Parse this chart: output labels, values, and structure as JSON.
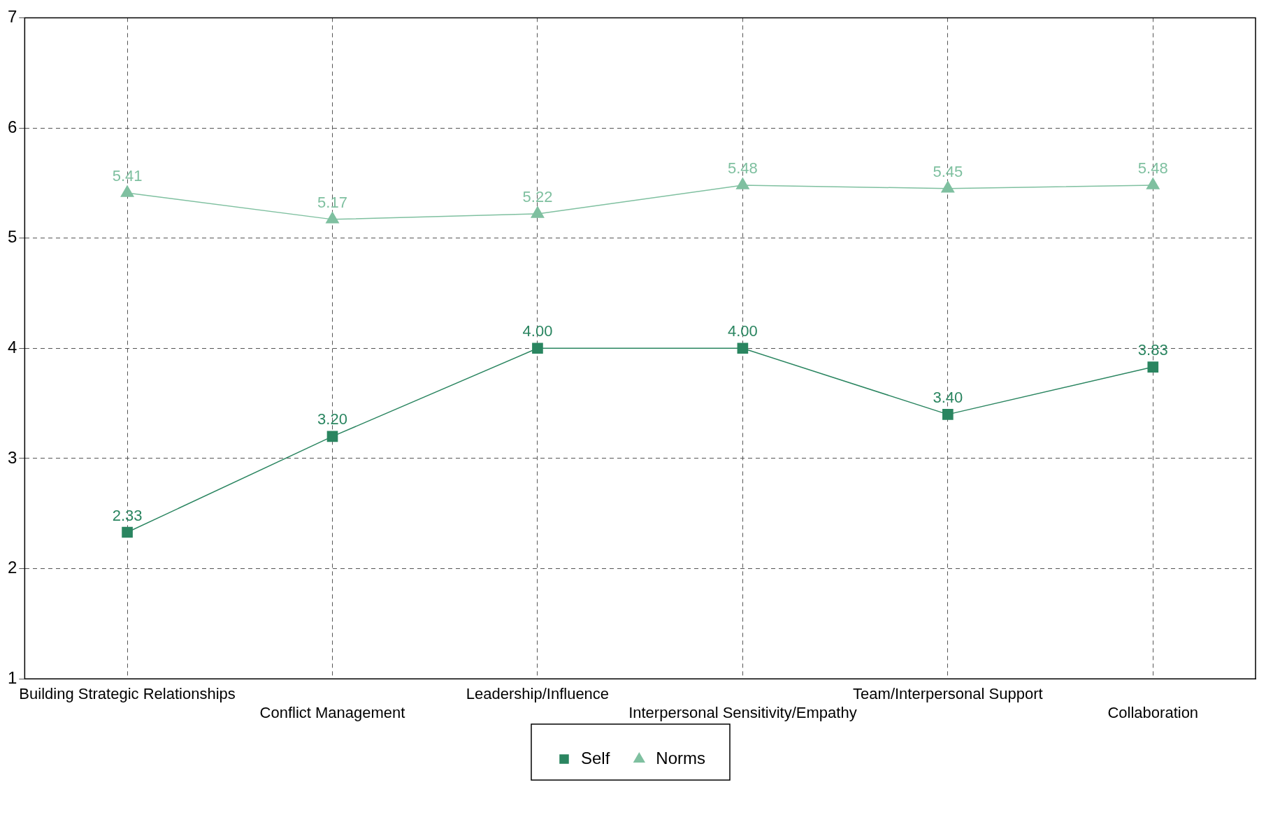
{
  "chart_data": {
    "type": "line",
    "categories": [
      "Building Strategic Relationships",
      "Conflict Management",
      "Leadership/Influence",
      "Interpersonal Sensitivity/Empathy",
      "Team/Interpersonal Support",
      "Collaboration"
    ],
    "series": [
      {
        "name": "Self",
        "color": "#2a8560",
        "marker": "square",
        "values": [
          2.33,
          3.2,
          4.0,
          4.0,
          3.4,
          3.83
        ],
        "value_labels": [
          "2.33",
          "3.20",
          "4.00",
          "4.00",
          "3.40",
          "3.83"
        ]
      },
      {
        "name": "Norms",
        "color": "#7fc0a0",
        "marker": "triangle",
        "values": [
          5.41,
          5.17,
          5.22,
          5.48,
          5.45,
          5.48
        ],
        "value_labels": [
          "5.41",
          "5.17",
          "5.22",
          "5.48",
          "5.45",
          "5.48"
        ]
      }
    ],
    "ylim": [
      1,
      7
    ],
    "yticks": [
      1,
      2,
      3,
      4,
      5,
      6,
      7
    ],
    "grid": true,
    "legend": "bottom"
  }
}
